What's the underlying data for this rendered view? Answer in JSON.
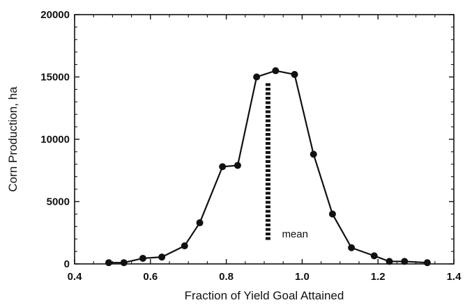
{
  "chart_data": {
    "type": "line",
    "title": "",
    "xlabel": "Fraction of Yield Goal Attained",
    "ylabel": "Corn Production, ha",
    "xlim": [
      0.4,
      1.4
    ],
    "ylim": [
      0,
      20000
    ],
    "xticks": [
      0.4,
      0.6,
      0.8,
      1.0,
      1.2,
      1.4
    ],
    "xtick_labels": [
      "0.4",
      "0.6",
      "0.8",
      "1.0",
      "1.2",
      "1.4"
    ],
    "yticks": [
      0,
      5000,
      10000,
      15000,
      20000
    ],
    "ytick_labels": [
      "0",
      "5000",
      "10000",
      "15000",
      "20000"
    ],
    "grid": false,
    "legend": "none",
    "series": [
      {
        "x": [
          0.49,
          0.53,
          0.58,
          0.63,
          0.69,
          0.73,
          0.79,
          0.83,
          0.88,
          0.93,
          0.98,
          1.03,
          1.08,
          1.13,
          1.19,
          1.23,
          1.27,
          1.33
        ],
        "y": [
          100,
          100,
          450,
          550,
          1450,
          3300,
          7800,
          7900,
          15000,
          15500,
          15200,
          8800,
          4000,
          1300,
          650,
          200,
          200,
          100
        ]
      }
    ],
    "annotations": [
      {
        "text": "mean",
        "x": 0.91,
        "y_from": 1800,
        "y_to": 14500,
        "style": "dashed-vertical-line"
      }
    ]
  }
}
